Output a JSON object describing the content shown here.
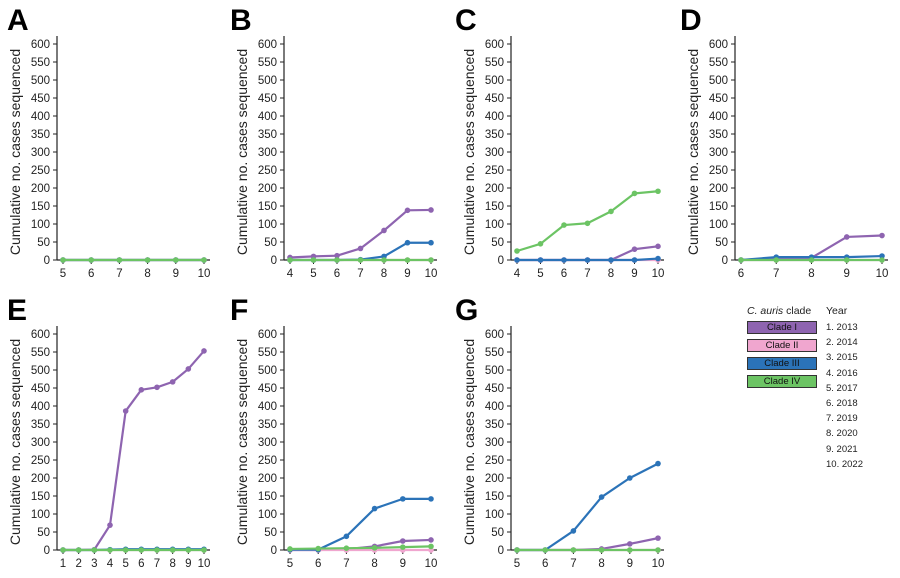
{
  "colors": {
    "clade_1": "#8E64B0",
    "clade_2": "#F0A6CF",
    "clade_3": "#2B73B8",
    "clade_4": "#6CC464",
    "axis": "#222222"
  },
  "legend": {
    "clade_header_italic": "C. auris",
    "clade_header_rest": " clade",
    "year_header": "Year",
    "clades": [
      {
        "label": "Clade I",
        "color": "#8E64B0"
      },
      {
        "label": "Clade II",
        "color": "#F0A6CF"
      },
      {
        "label": "Clade III",
        "color": "#2B73B8"
      },
      {
        "label": "Clade IV",
        "color": "#6CC464"
      }
    ],
    "years": [
      "1. 2013",
      "2. 2014",
      "3. 2015",
      "4. 2016",
      "5. 2017",
      "6. 2018",
      "7. 2019",
      "8. 2020",
      "9. 2021",
      "10. 2022"
    ]
  },
  "chart_data": [
    {
      "panel": "A",
      "type": "line",
      "ylabel": "Cumulative no. cases sequenced",
      "xlabel": "",
      "ylim": [
        0,
        600
      ],
      "yticks": [
        0,
        50,
        100,
        150,
        200,
        250,
        300,
        350,
        400,
        450,
        500,
        550,
        600
      ],
      "x": [
        5,
        6,
        7,
        8,
        9,
        10
      ],
      "series": [
        {
          "name": "Clade I",
          "values": [
            0,
            0,
            0,
            0,
            0,
            0
          ]
        },
        {
          "name": "Clade II",
          "values": [
            0,
            0,
            0,
            0,
            0,
            0
          ]
        },
        {
          "name": "Clade III",
          "values": [
            0,
            0,
            0,
            0,
            0,
            0
          ]
        },
        {
          "name": "Clade IV",
          "values": [
            0,
            0,
            0,
            0,
            0,
            0
          ]
        }
      ]
    },
    {
      "panel": "B",
      "type": "line",
      "ylabel": "Cumulative no. cases sequenced",
      "xlabel": "",
      "ylim": [
        0,
        600
      ],
      "yticks": [
        0,
        50,
        100,
        150,
        200,
        250,
        300,
        350,
        400,
        450,
        500,
        550,
        600
      ],
      "x": [
        4,
        5,
        6,
        7,
        8,
        9,
        10
      ],
      "series": [
        {
          "name": "Clade I",
          "values": [
            7,
            10,
            12,
            32,
            82,
            138,
            139
          ]
        },
        {
          "name": "Clade II",
          "values": [
            0,
            0,
            0,
            0,
            0,
            0,
            0
          ]
        },
        {
          "name": "Clade III",
          "values": [
            0,
            0,
            0,
            1,
            10,
            48,
            48
          ]
        },
        {
          "name": "Clade IV",
          "values": [
            0,
            0,
            0,
            0,
            0,
            0,
            0
          ]
        }
      ]
    },
    {
      "panel": "C",
      "type": "line",
      "ylabel": "Cumulative no. cases sequenced",
      "xlabel": "",
      "ylim": [
        0,
        600
      ],
      "yticks": [
        0,
        50,
        100,
        150,
        200,
        250,
        300,
        350,
        400,
        450,
        500,
        550,
        600
      ],
      "x": [
        4,
        5,
        6,
        7,
        8,
        9,
        10
      ],
      "series": [
        {
          "name": "Clade I",
          "values": [
            0,
            0,
            0,
            0,
            0,
            30,
            38
          ]
        },
        {
          "name": "Clade II",
          "values": [
            0,
            0,
            0,
            0,
            0,
            0,
            0
          ]
        },
        {
          "name": "Clade III",
          "values": [
            0,
            0,
            0,
            0,
            0,
            0,
            4
          ]
        },
        {
          "name": "Clade IV",
          "values": [
            25,
            45,
            97,
            102,
            135,
            185,
            191
          ]
        }
      ]
    },
    {
      "panel": "D",
      "type": "line",
      "ylabel": "Cumulative no. cases sequenced",
      "xlabel": "",
      "ylim": [
        0,
        600
      ],
      "yticks": [
        0,
        50,
        100,
        150,
        200,
        250,
        300,
        350,
        400,
        450,
        500,
        550,
        600
      ],
      "x": [
        6,
        7,
        8,
        9,
        10
      ],
      "series": [
        {
          "name": "Clade I",
          "values": [
            0,
            5,
            6,
            64,
            68
          ]
        },
        {
          "name": "Clade II",
          "values": [
            0,
            0,
            0,
            0,
            0
          ]
        },
        {
          "name": "Clade III",
          "values": [
            0,
            8,
            8,
            8,
            11
          ]
        },
        {
          "name": "Clade IV",
          "values": [
            0,
            0,
            0,
            0,
            0
          ]
        }
      ]
    },
    {
      "panel": "E",
      "type": "line",
      "ylabel": "Cumulative no. cases sequenced",
      "xlabel": "",
      "ylim": [
        0,
        600
      ],
      "yticks": [
        0,
        50,
        100,
        150,
        200,
        250,
        300,
        350,
        400,
        450,
        500,
        550,
        600
      ],
      "x": [
        1,
        2,
        3,
        4,
        5,
        6,
        7,
        8,
        9,
        10
      ],
      "series": [
        {
          "name": "Clade I",
          "values": [
            0,
            0,
            1,
            69,
            386,
            445,
            452,
            467,
            503,
            553
          ]
        },
        {
          "name": "Clade II",
          "values": [
            0,
            0,
            0,
            0,
            0,
            0,
            0,
            0,
            0,
            0
          ]
        },
        {
          "name": "Clade III",
          "values": [
            0,
            0,
            0,
            1,
            2,
            2,
            2,
            2,
            2,
            2
          ]
        },
        {
          "name": "Clade IV",
          "values": [
            0,
            0,
            0,
            0,
            0,
            0,
            0,
            0,
            0,
            0
          ]
        }
      ]
    },
    {
      "panel": "F",
      "type": "line",
      "ylabel": "Cumulative no. cases sequenced",
      "xlabel": "",
      "ylim": [
        0,
        600
      ],
      "yticks": [
        0,
        50,
        100,
        150,
        200,
        250,
        300,
        350,
        400,
        450,
        500,
        550,
        600
      ],
      "x": [
        5,
        6,
        7,
        8,
        9,
        10
      ],
      "series": [
        {
          "name": "Clade I",
          "values": [
            0,
            0,
            2,
            10,
            25,
            28
          ]
        },
        {
          "name": "Clade II",
          "values": [
            0,
            0,
            0,
            0,
            0,
            0
          ]
        },
        {
          "name": "Clade III",
          "values": [
            1,
            1,
            38,
            115,
            142,
            142
          ]
        },
        {
          "name": "Clade IV",
          "values": [
            3,
            4,
            5,
            6,
            8,
            10
          ]
        }
      ]
    },
    {
      "panel": "G",
      "type": "line",
      "ylabel": "Cumulative no. cases sequenced",
      "xlabel": "",
      "ylim": [
        0,
        600
      ],
      "yticks": [
        0,
        50,
        100,
        150,
        200,
        250,
        300,
        350,
        400,
        450,
        500,
        550,
        600
      ],
      "x": [
        5,
        6,
        7,
        8,
        9,
        10
      ],
      "series": [
        {
          "name": "Clade I",
          "values": [
            0,
            0,
            0,
            3,
            17,
            33
          ]
        },
        {
          "name": "Clade II",
          "values": [
            0,
            0,
            0,
            0,
            0,
            0
          ]
        },
        {
          "name": "Clade III",
          "values": [
            0,
            0,
            53,
            147,
            200,
            240
          ]
        },
        {
          "name": "Clade IV",
          "values": [
            0,
            0,
            0,
            0,
            0,
            0
          ]
        }
      ]
    }
  ]
}
